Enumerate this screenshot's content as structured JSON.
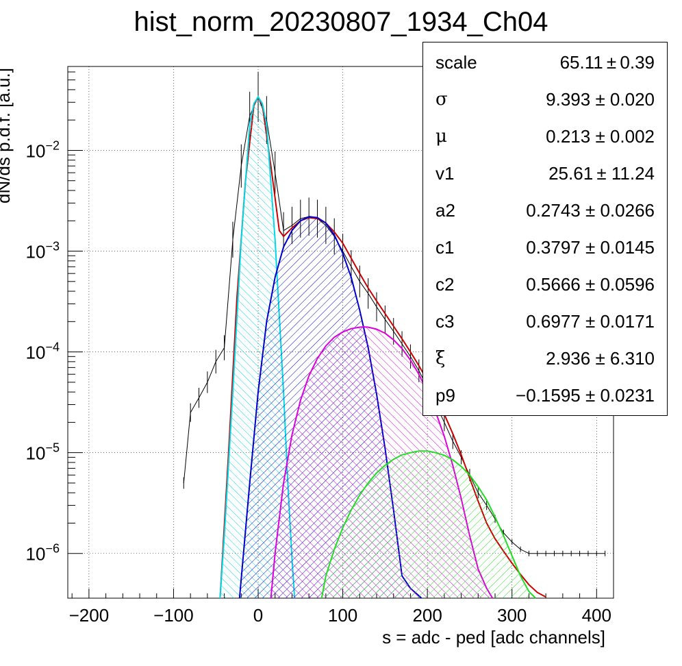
{
  "title": "hist_norm_20230807_1934_Ch04",
  "chart_data": {
    "type": "line",
    "title": "hist_norm_20230807_1934_Ch04",
    "xlabel": "s = adc - ped [adc channels]",
    "ylabel": "dN/ds p.d.f. [a.u.]",
    "xlim": [
      -225,
      420
    ],
    "ylim": [
      3.6e-07,
      0.068
    ],
    "yscale": "log",
    "grid": true,
    "x_ticks": [
      -200,
      -100,
      0,
      100,
      200,
      300,
      400
    ],
    "x_tick_labels": [
      "−200",
      "−100",
      "0",
      "100",
      "200",
      "300",
      "400"
    ],
    "y_ticks": [
      1e-06,
      1e-05,
      0.0001,
      0.001,
      0.01
    ],
    "y_tick_labels": [
      {
        "base": "10",
        "exp": "−6"
      },
      {
        "base": "10",
        "exp": "−5"
      },
      {
        "base": "10",
        "exp": "−4"
      },
      {
        "base": "10",
        "exp": "−3"
      },
      {
        "base": "10",
        "exp": "−2"
      }
    ],
    "series": [
      {
        "color": "#000000",
        "style": "histogram",
        "x": [
          -88,
          -80,
          -70,
          -60,
          -50,
          -40,
          -30,
          -20,
          -10,
          0,
          10,
          20,
          30,
          40,
          50,
          60,
          70,
          80,
          90,
          100,
          110,
          120,
          130,
          140,
          150,
          160,
          170,
          180,
          190,
          200,
          210,
          220,
          230,
          240,
          250,
          260,
          270,
          280,
          290,
          300,
          310,
          320,
          330,
          340,
          350,
          360,
          370,
          380,
          390,
          400,
          410
        ],
        "y": [
          5e-06,
          2.5e-05,
          3.5e-05,
          5e-05,
          8e-05,
          0.00011,
          0.0013,
          0.007,
          0.022,
          0.034,
          0.02,
          0.006,
          0.0016,
          0.0018,
          0.0021,
          0.0022,
          0.0021,
          0.0018,
          0.0014,
          0.001,
          0.0007,
          0.0005,
          0.00038,
          0.00028,
          0.00021,
          0.00016,
          0.00012,
          9e-05,
          6.5e-05,
          4.5e-05,
          3e-05,
          2e-05,
          1.3e-05,
          9e-06,
          6e-06,
          4e-06,
          3e-06,
          2.2e-06,
          1.6e-06,
          1.3e-06,
          1.1e-06,
          1e-06,
          1e-06,
          1e-06,
          1e-06,
          1e-06,
          1e-06,
          1e-06,
          1e-06,
          1e-06,
          1e-06
        ]
      },
      {
        "color": "#cc0000",
        "style": "fit-total",
        "x": [
          -45,
          -35,
          -25,
          -15,
          -5,
          0,
          5,
          15,
          25,
          30,
          40,
          50,
          60,
          70,
          80,
          90,
          100,
          110,
          120,
          130,
          140,
          150,
          160,
          170,
          180,
          190,
          200,
          210,
          220,
          230,
          240,
          250,
          260,
          270,
          280,
          290,
          300,
          310,
          320,
          330,
          340
        ],
        "y": [
          3e-07,
          1e-05,
          0.00035,
          0.005,
          0.028,
          0.034,
          0.028,
          0.007,
          0.0016,
          0.0014,
          0.0017,
          0.002,
          0.00215,
          0.0021,
          0.0019,
          0.00155,
          0.0012,
          0.00085,
          0.0006,
          0.00043,
          0.00032,
          0.00024,
          0.00018,
          0.000135,
          0.0001,
          7.3e-05,
          5.2e-05,
          3.6e-05,
          2.4e-05,
          1.55e-05,
          9.5e-06,
          5.6e-06,
          3.3e-06,
          2e-06,
          1.4e-06,
          1.05e-06,
          8e-07,
          6.2e-07,
          4.9e-07,
          4.1e-07,
          3.7e-07
        ]
      },
      {
        "color": "#00d8e8",
        "style": "component",
        "x": [
          -45,
          -40,
          -30,
          -20,
          -10,
          -5,
          0,
          5,
          10,
          20,
          30,
          35,
          40,
          43
        ],
        "y": [
          3.6e-07,
          1.5e-06,
          4e-05,
          0.0013,
          0.018,
          0.029,
          0.034,
          0.029,
          0.018,
          0.0013,
          4e-05,
          5e-06,
          9e-07,
          3.6e-07
        ]
      },
      {
        "color": "#0000cc",
        "style": "component",
        "x": [
          -22,
          -10,
          0,
          10,
          20,
          30,
          40,
          50,
          60,
          70,
          80,
          90,
          100,
          110,
          120,
          130,
          140,
          150,
          160,
          170,
          180,
          190,
          193
        ],
        "y": [
          3.6e-07,
          5e-06,
          4e-05,
          0.0002,
          0.00055,
          0.0011,
          0.0016,
          0.002,
          0.0022,
          0.00215,
          0.0019,
          0.00145,
          0.00095,
          0.00055,
          0.00026,
          0.00011,
          3.8e-05,
          1.1e-05,
          2.7e-06,
          6e-07,
          4.5e-07,
          3.8e-07,
          3.6e-07
        ]
      },
      {
        "color": "#dd00dd",
        "style": "component",
        "x": [
          15,
          20,
          30,
          40,
          50,
          60,
          70,
          80,
          90,
          100,
          110,
          120,
          125,
          130,
          140,
          150,
          160,
          170,
          180,
          190,
          200,
          210,
          220,
          230,
          240,
          250,
          260,
          270,
          277
        ],
        "y": [
          3.6e-07,
          1e-06,
          5e-06,
          1.5e-05,
          3.3e-05,
          5.8e-05,
          8.6e-05,
          0.000115,
          0.00014,
          0.000158,
          0.00017,
          0.000176,
          0.000177,
          0.000176,
          0.000168,
          0.000153,
          0.000132,
          0.000108,
          8.3e-05,
          6e-05,
          4e-05,
          2.5e-05,
          1.45e-05,
          7.5e-06,
          3.5e-06,
          1.5e-06,
          7e-07,
          4.5e-07,
          3.6e-07
        ]
      },
      {
        "color": "#22dd22",
        "style": "component",
        "x": [
          75,
          80,
          90,
          100,
          110,
          120,
          130,
          140,
          150,
          160,
          170,
          180,
          190,
          200,
          210,
          220,
          230,
          240,
          250,
          260,
          270,
          280,
          290,
          300,
          310,
          320,
          328
        ],
        "y": [
          3.6e-07,
          6e-07,
          1.1e-06,
          1.8e-06,
          2.7e-06,
          3.8e-06,
          5e-06,
          6.3e-06,
          7.5e-06,
          8.6e-06,
          9.5e-06,
          1e-05,
          1.04e-05,
          1.04e-05,
          1e-05,
          9.4e-06,
          8.5e-06,
          7.3e-06,
          6e-06,
          4.6e-06,
          3.4e-06,
          2.3e-06,
          1.5e-06,
          9.5e-07,
          6e-07,
          4.2e-07,
          3.6e-07
        ]
      }
    ]
  },
  "stats": [
    {
      "name": "scale",
      "value": "65.11 ± 0.39",
      "greek": false
    },
    {
      "name": "σ",
      "value": "9.393 ± 0.020",
      "greek": true
    },
    {
      "name": "μ",
      "value": "0.213 ± 0.002",
      "greek": true
    },
    {
      "name": "v1",
      "value": "25.61 ± 11.24",
      "greek": false
    },
    {
      "name": "a2",
      "value": "0.2743 ± 0.0266",
      "greek": false
    },
    {
      "name": "c1",
      "value": "0.3797 ± 0.0145",
      "greek": false
    },
    {
      "name": "c2",
      "value": "0.5666 ± 0.0596",
      "greek": false
    },
    {
      "name": "c3",
      "value": "0.6977 ± 0.0171",
      "greek": false
    },
    {
      "name": "ξ",
      "value": "2.936 ± 6.310",
      "greek": true
    },
    {
      "name": "p9",
      "value": "−0.1595 ± 0.0231",
      "greek": false
    }
  ]
}
